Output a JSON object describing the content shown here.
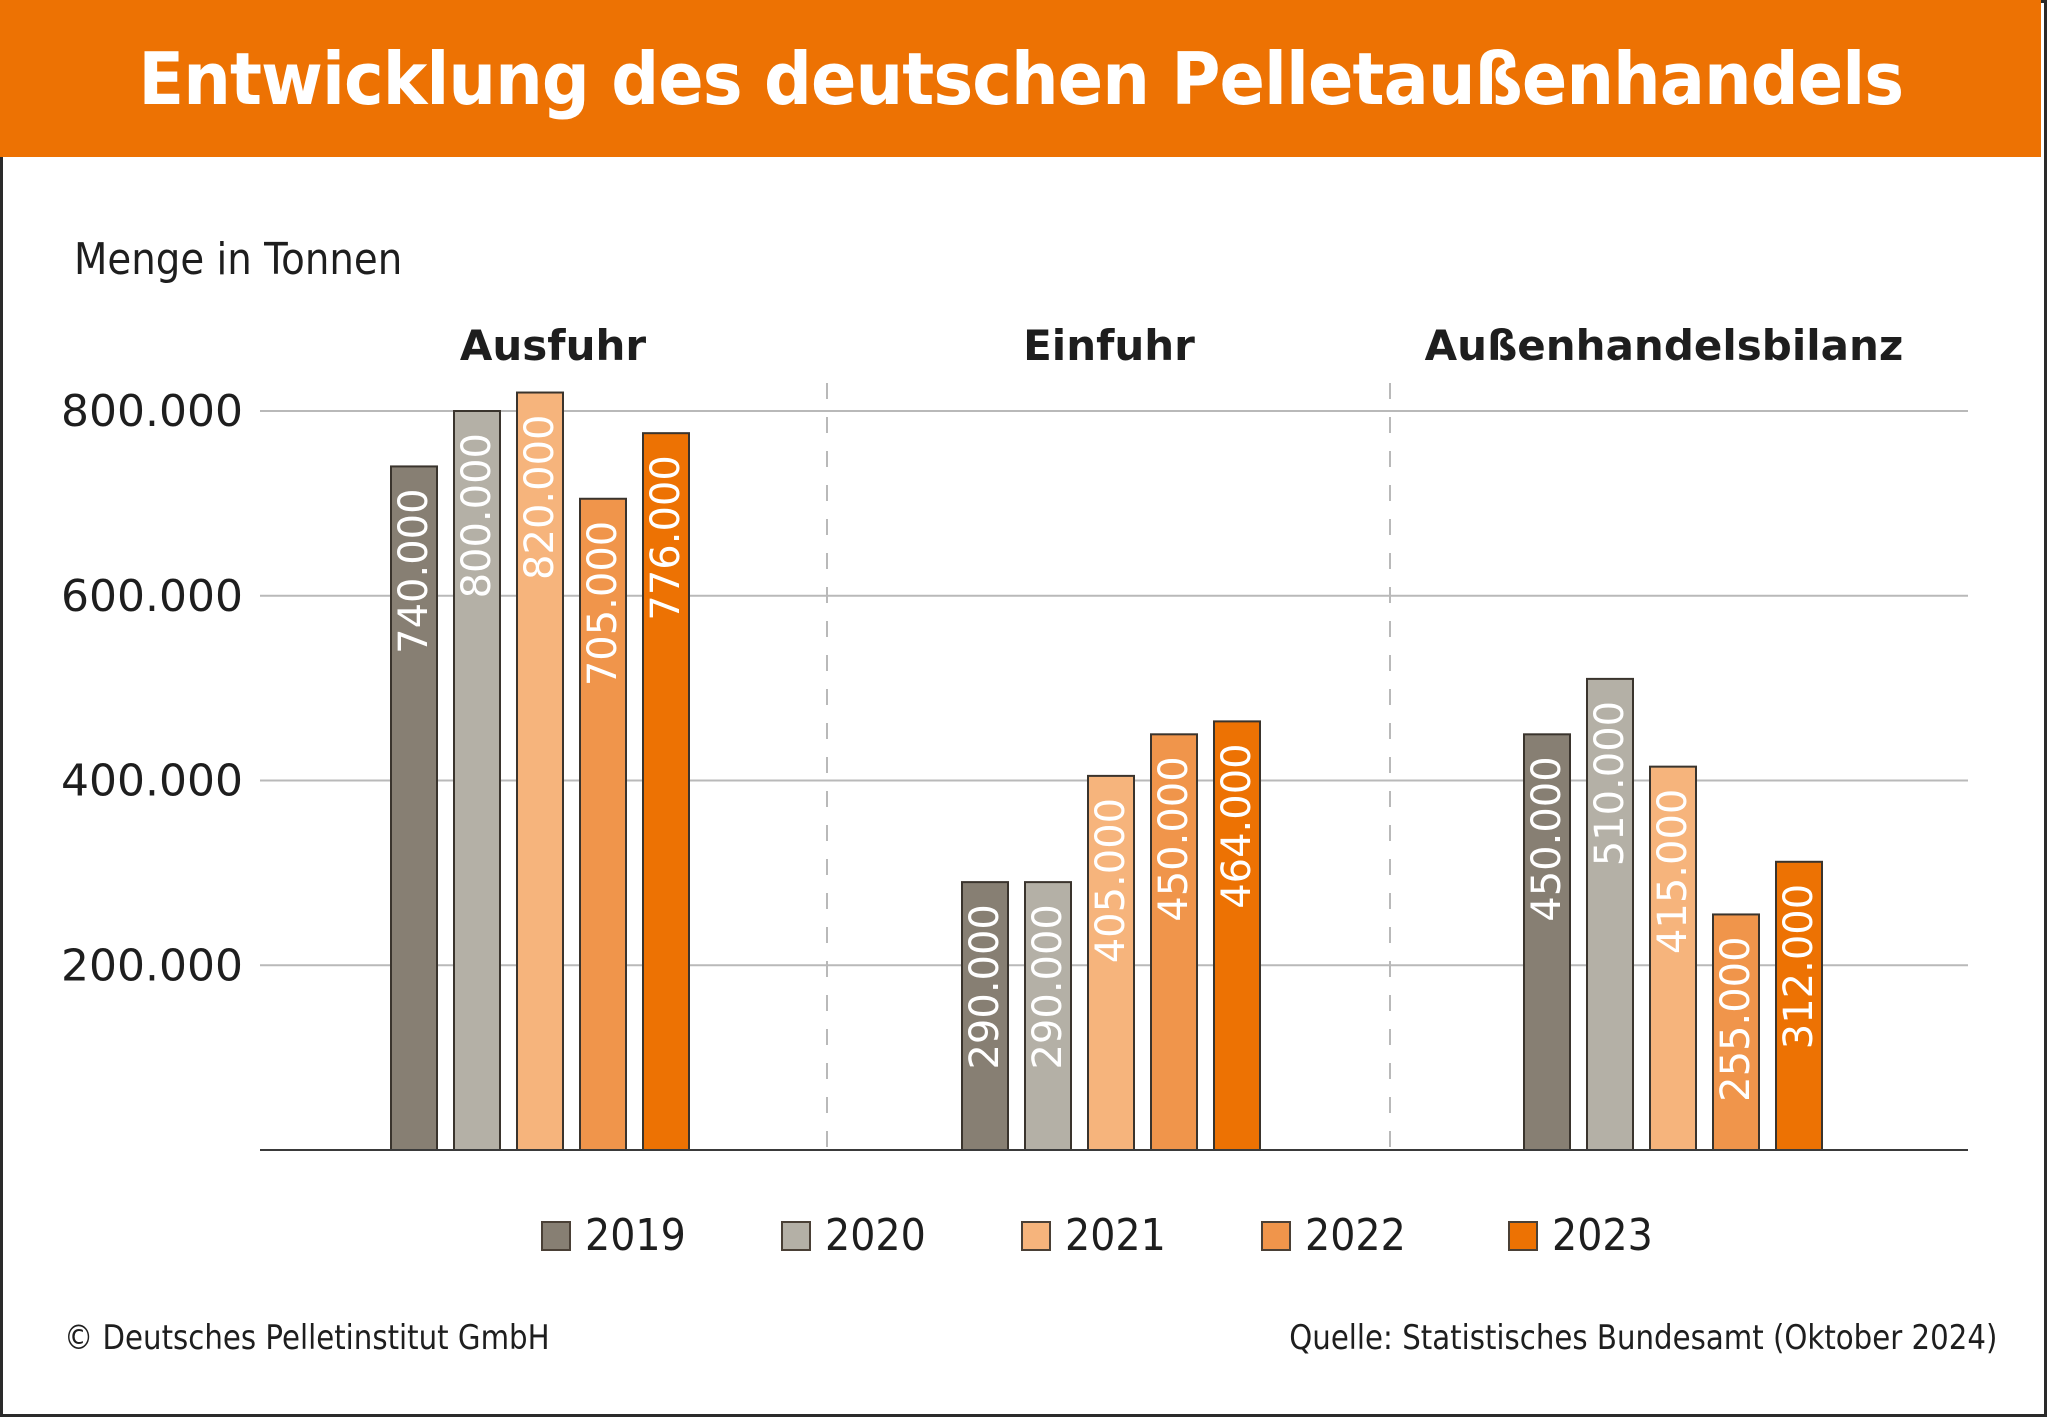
{
  "header": {
    "title": "Entwicklung des deutschen Pelletaußenhandels"
  },
  "unit_label": "Menge in Tonnen",
  "footer": {
    "copyright": "© Deutsches Pelletinstitut GmbH",
    "source": "Quelle: Statistisches Bundesamt (Oktober 2024)"
  },
  "colors": {
    "header": "#ED7203",
    "2019": "#877F73",
    "2020": "#B4B0A6",
    "2021": "#F6B47C",
    "2022": "#F0954B",
    "2023": "#ED7203"
  },
  "chart_data": {
    "type": "bar",
    "title": "Entwicklung des deutschen Pelletaußenhandels",
    "ylabel": "Menge in Tonnen",
    "xlabel": "",
    "ylim": [
      0,
      820000
    ],
    "yticks": [
      200000,
      400000,
      600000,
      800000
    ],
    "ytick_labels": [
      "200.000",
      "400.000",
      "600.000",
      "800.000"
    ],
    "grid": true,
    "legend_position": "bottom",
    "categories": [
      "Ausfuhr",
      "Einfuhr",
      "Außenhandelsbilanz"
    ],
    "series": [
      {
        "name": "2019",
        "color": "#877F73",
        "values": [
          740000,
          290000,
          450000
        ],
        "labels": [
          "740.000",
          "290.000",
          "450.000"
        ]
      },
      {
        "name": "2020",
        "color": "#B4B0A6",
        "values": [
          800000,
          290000,
          510000
        ],
        "labels": [
          "800.000",
          "290.000",
          "510.000"
        ]
      },
      {
        "name": "2021",
        "color": "#F6B47C",
        "values": [
          820000,
          405000,
          415000
        ],
        "labels": [
          "820.000",
          "405.000",
          "415.000"
        ]
      },
      {
        "name": "2022",
        "color": "#F0954B",
        "values": [
          705000,
          450000,
          255000
        ],
        "labels": [
          "705.000",
          "450.000",
          "255.000"
        ]
      },
      {
        "name": "2023",
        "color": "#ED7203",
        "values": [
          776000,
          464000,
          312000
        ],
        "labels": [
          "776.000",
          "464.000",
          "312.000"
        ]
      }
    ]
  }
}
